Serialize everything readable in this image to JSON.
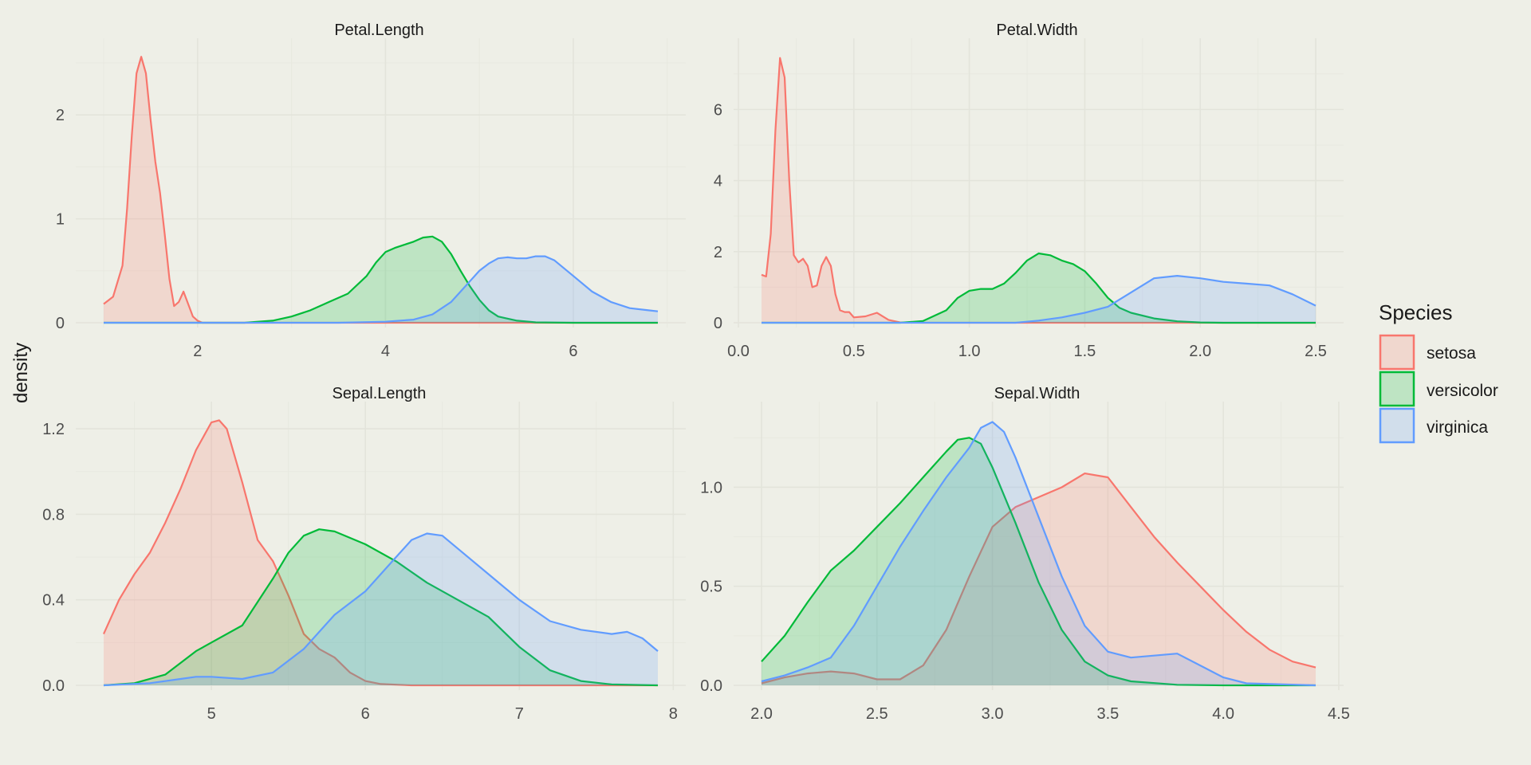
{
  "chart_data": {
    "type": "area",
    "ylabel": "density",
    "legend": {
      "title": "Species",
      "placement": "right",
      "entries": [
        {
          "label": "setosa",
          "color": "#F8766D"
        },
        {
          "label": "versicolor",
          "color": "#00BA38"
        },
        {
          "label": "virginica",
          "color": "#619CFF"
        }
      ]
    },
    "panels": [
      {
        "title": "Petal.Length",
        "xlim": [
          1.0,
          6.9
        ],
        "ylim": [
          0,
          2.6
        ],
        "xticks": [
          2,
          4,
          6
        ],
        "xtick_labels": [
          "2",
          "4",
          "6"
        ],
        "yticks": [
          0,
          1,
          2
        ],
        "ytick_labels": [
          "0",
          "1",
          "2"
        ],
        "series": [
          {
            "name": "setosa",
            "x": [
              1.0,
              1.1,
              1.2,
              1.25,
              1.3,
              1.35,
              1.4,
              1.45,
              1.5,
              1.55,
              1.6,
              1.65,
              1.7,
              1.75,
              1.8,
              1.85,
              1.9,
              1.95,
              2.0,
              2.05,
              2.2,
              3.0,
              4.0,
              5.0,
              6.0,
              6.9
            ],
            "y": [
              0.18,
              0.25,
              0.55,
              1.1,
              1.8,
              2.4,
              2.56,
              2.4,
              1.95,
              1.55,
              1.25,
              0.85,
              0.42,
              0.16,
              0.2,
              0.3,
              0.18,
              0.06,
              0.02,
              0,
              0,
              0,
              0,
              0,
              0,
              0
            ]
          },
          {
            "name": "versicolor",
            "x": [
              1.0,
              2.5,
              2.8,
              3.0,
              3.2,
              3.4,
              3.6,
              3.8,
              3.9,
              4.0,
              4.1,
              4.2,
              4.3,
              4.4,
              4.5,
              4.6,
              4.7,
              4.8,
              4.9,
              5.0,
              5.1,
              5.2,
              5.4,
              5.6,
              6.0,
              6.9
            ],
            "y": [
              0,
              0,
              0.02,
              0.06,
              0.12,
              0.2,
              0.28,
              0.45,
              0.58,
              0.68,
              0.72,
              0.75,
              0.78,
              0.82,
              0.83,
              0.78,
              0.66,
              0.5,
              0.35,
              0.22,
              0.12,
              0.06,
              0.02,
              0.004,
              0,
              0
            ],
            "y_scale": 1
          },
          {
            "name": "virginica",
            "x": [
              1.0,
              3.5,
              4.0,
              4.3,
              4.5,
              4.7,
              4.8,
              4.9,
              5.0,
              5.1,
              5.2,
              5.3,
              5.4,
              5.5,
              5.6,
              5.7,
              5.8,
              6.0,
              6.2,
              6.4,
              6.6,
              6.8,
              6.9
            ],
            "y": [
              0,
              0,
              0.01,
              0.03,
              0.08,
              0.2,
              0.3,
              0.4,
              0.5,
              0.57,
              0.62,
              0.63,
              0.62,
              0.62,
              0.64,
              0.64,
              0.6,
              0.45,
              0.3,
              0.2,
              0.14,
              0.12,
              0.11
            ]
          }
        ]
      },
      {
        "title": "Petal.Width",
        "xlim": [
          0.1,
          2.5
        ],
        "ylim": [
          0,
          7.6
        ],
        "xticks": [
          0.0,
          0.5,
          1.0,
          1.5,
          2.0,
          2.5
        ],
        "xtick_labels": [
          "0.0",
          "0.5",
          "1.0",
          "1.5",
          "2.0",
          "2.5"
        ],
        "yticks": [
          0,
          2,
          4,
          6
        ],
        "ytick_labels": [
          "0",
          "2",
          "4",
          "6"
        ],
        "series": [
          {
            "name": "setosa",
            "x": [
              0.1,
              0.12,
              0.14,
              0.16,
              0.18,
              0.2,
              0.22,
              0.24,
              0.26,
              0.28,
              0.3,
              0.32,
              0.34,
              0.36,
              0.38,
              0.4,
              0.42,
              0.44,
              0.46,
              0.48,
              0.5,
              0.55,
              0.6,
              0.65,
              0.7,
              0.8,
              2.5
            ],
            "y": [
              1.35,
              1.3,
              2.5,
              5.4,
              7.45,
              6.9,
              4.0,
              1.9,
              1.7,
              1.8,
              1.6,
              1.0,
              1.05,
              1.6,
              1.85,
              1.6,
              0.8,
              0.35,
              0.3,
              0.3,
              0.15,
              0.18,
              0.28,
              0.08,
              0.01,
              0,
              0
            ]
          },
          {
            "name": "versicolor",
            "x": [
              0.1,
              0.7,
              0.8,
              0.9,
              0.95,
              1.0,
              1.05,
              1.1,
              1.15,
              1.2,
              1.25,
              1.3,
              1.35,
              1.4,
              1.45,
              1.5,
              1.55,
              1.6,
              1.65,
              1.7,
              1.8,
              1.9,
              2.0,
              2.1,
              2.5
            ],
            "y": [
              0,
              0,
              0.05,
              0.35,
              0.7,
              0.9,
              0.95,
              0.95,
              1.1,
              1.4,
              1.75,
              1.95,
              1.9,
              1.75,
              1.65,
              1.45,
              1.1,
              0.7,
              0.42,
              0.28,
              0.12,
              0.04,
              0.01,
              0,
              0
            ]
          },
          {
            "name": "virginica",
            "x": [
              0.1,
              1.2,
              1.3,
              1.4,
              1.5,
              1.6,
              1.7,
              1.8,
              1.9,
              2.0,
              2.1,
              2.2,
              2.3,
              2.4,
              2.5
            ],
            "y": [
              0,
              0,
              0.06,
              0.15,
              0.28,
              0.45,
              0.85,
              1.25,
              1.32,
              1.25,
              1.15,
              1.1,
              1.05,
              0.8,
              0.48
            ]
          }
        ]
      },
      {
        "title": "Sepal.Length",
        "xlim": [
          4.3,
          7.9
        ],
        "ylim": [
          0,
          1.26
        ],
        "xticks": [
          5,
          6,
          7,
          8
        ],
        "xtick_labels": [
          "5",
          "6",
          "7",
          "8"
        ],
        "yticks": [
          0.0,
          0.4,
          0.8,
          1.2
        ],
        "ytick_labels": [
          "0.0",
          "0.4",
          "0.8",
          "1.2"
        ],
        "series": [
          {
            "name": "setosa",
            "x": [
              4.3,
              4.4,
              4.5,
              4.6,
              4.7,
              4.8,
              4.9,
              5.0,
              5.05,
              5.1,
              5.2,
              5.3,
              5.4,
              5.5,
              5.6,
              5.7,
              5.8,
              5.9,
              6.0,
              6.1,
              6.3,
              7.9
            ],
            "y": [
              0.24,
              0.4,
              0.52,
              0.62,
              0.76,
              0.92,
              1.1,
              1.23,
              1.24,
              1.2,
              0.95,
              0.68,
              0.58,
              0.42,
              0.24,
              0.17,
              0.13,
              0.06,
              0.02,
              0.006,
              0,
              0
            ]
          },
          {
            "name": "versicolor",
            "x": [
              4.3,
              4.5,
              4.7,
              4.9,
              5.0,
              5.2,
              5.4,
              5.5,
              5.6,
              5.7,
              5.8,
              6.0,
              6.2,
              6.4,
              6.6,
              6.8,
              7.0,
              7.2,
              7.4,
              7.6,
              7.9
            ],
            "y": [
              0,
              0.01,
              0.05,
              0.16,
              0.2,
              0.28,
              0.5,
              0.62,
              0.7,
              0.73,
              0.72,
              0.66,
              0.58,
              0.48,
              0.4,
              0.32,
              0.18,
              0.07,
              0.02,
              0.004,
              0
            ]
          },
          {
            "name": "virginica",
            "x": [
              4.3,
              4.6,
              4.8,
              4.9,
              5.0,
              5.2,
              5.4,
              5.6,
              5.8,
              6.0,
              6.2,
              6.3,
              6.4,
              6.5,
              6.6,
              6.8,
              7.0,
              7.2,
              7.4,
              7.6,
              7.7,
              7.8,
              7.9
            ],
            "y": [
              0,
              0.01,
              0.03,
              0.04,
              0.04,
              0.03,
              0.06,
              0.17,
              0.33,
              0.44,
              0.6,
              0.68,
              0.71,
              0.7,
              0.64,
              0.52,
              0.4,
              0.3,
              0.26,
              0.24,
              0.25,
              0.22,
              0.16
            ]
          }
        ]
      },
      {
        "title": "Sepal.Width",
        "xlim": [
          2.0,
          4.4
        ],
        "ylim": [
          0,
          1.36
        ],
        "xticks": [
          2.0,
          2.5,
          3.0,
          3.5,
          4.0,
          4.5
        ],
        "xtick_labels": [
          "2.0",
          "2.5",
          "3.0",
          "3.5",
          "4.0",
          "4.5"
        ],
        "yticks": [
          0.0,
          0.5,
          1.0
        ],
        "ytick_labels": [
          "0.0",
          "0.5",
          "1.0"
        ],
        "series": [
          {
            "name": "setosa",
            "x": [
              2.0,
              2.1,
              2.2,
              2.3,
              2.4,
              2.5,
              2.6,
              2.7,
              2.8,
              2.9,
              3.0,
              3.1,
              3.2,
              3.3,
              3.4,
              3.5,
              3.6,
              3.7,
              3.8,
              3.9,
              4.0,
              4.1,
              4.2,
              4.3,
              4.4
            ],
            "y": [
              0.01,
              0.04,
              0.06,
              0.07,
              0.06,
              0.03,
              0.03,
              0.1,
              0.28,
              0.55,
              0.8,
              0.9,
              0.95,
              1.0,
              1.07,
              1.05,
              0.9,
              0.75,
              0.62,
              0.5,
              0.38,
              0.27,
              0.18,
              0.12,
              0.09
            ]
          },
          {
            "name": "versicolor",
            "x": [
              2.0,
              2.1,
              2.2,
              2.3,
              2.4,
              2.5,
              2.6,
              2.7,
              2.8,
              2.85,
              2.9,
              2.95,
              3.0,
              3.1,
              3.2,
              3.3,
              3.4,
              3.5,
              3.6,
              3.8,
              4.0,
              4.4
            ],
            "y": [
              0.12,
              0.25,
              0.42,
              0.58,
              0.68,
              0.8,
              0.92,
              1.05,
              1.18,
              1.24,
              1.25,
              1.22,
              1.1,
              0.82,
              0.52,
              0.28,
              0.12,
              0.05,
              0.02,
              0.003,
              0,
              0
            ]
          },
          {
            "name": "virginica",
            "x": [
              2.0,
              2.1,
              2.2,
              2.3,
              2.4,
              2.5,
              2.6,
              2.7,
              2.8,
              2.9,
              2.95,
              3.0,
              3.05,
              3.1,
              3.2,
              3.3,
              3.4,
              3.5,
              3.6,
              3.7,
              3.8,
              3.9,
              4.0,
              4.1,
              4.4
            ],
            "y": [
              0.02,
              0.05,
              0.09,
              0.14,
              0.3,
              0.5,
              0.7,
              0.88,
              1.05,
              1.2,
              1.3,
              1.33,
              1.28,
              1.15,
              0.85,
              0.55,
              0.3,
              0.17,
              0.14,
              0.15,
              0.16,
              0.1,
              0.04,
              0.01,
              0
            ]
          }
        ]
      }
    ]
  }
}
